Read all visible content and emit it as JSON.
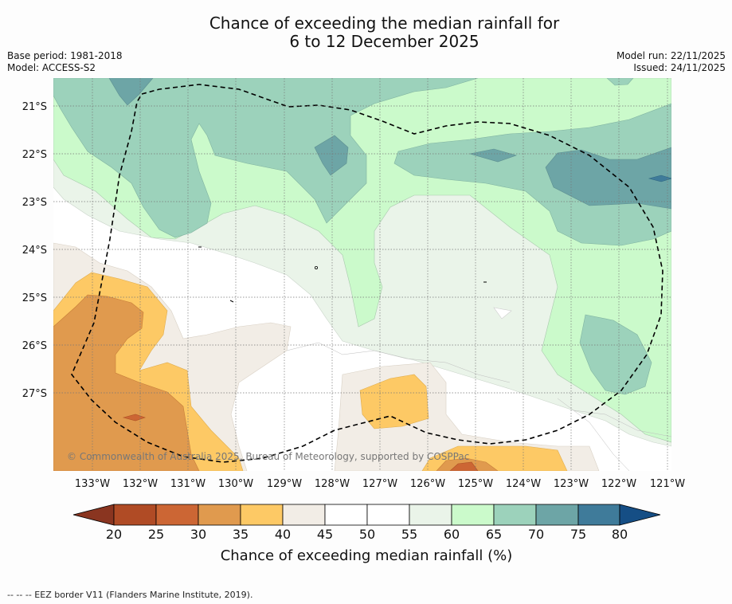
{
  "title": {
    "line1": "Chance of exceeding the median rainfall for",
    "line2": "6 to 12 December 2025"
  },
  "meta": {
    "base_period": "Base period: 1981-2018",
    "model": "Model: ACCESS-S2",
    "model_run": "Model run: 22/11/2025",
    "issued": "Issued: 24/11/2025"
  },
  "map": {
    "lat_labels": [
      "21°S",
      "22°S",
      "23°S",
      "24°S",
      "25°S",
      "26°S",
      "27°S"
    ],
    "lon_labels": [
      "133°W",
      "132°W",
      "131°W",
      "130°W",
      "129°W",
      "128°W",
      "127°W",
      "126°W",
      "125°W",
      "124°W",
      "123°W",
      "122°W",
      "121°W"
    ],
    "copyright": "© Commonwealth of Australia 2025, Bureau of Meteorology, supported by COSPPac",
    "background_color": "#ffffff",
    "border_line": "dashed"
  },
  "colorbar": {
    "ticks": [
      "20",
      "25",
      "30",
      "35",
      "40",
      "45",
      "50",
      "55",
      "60",
      "65",
      "70",
      "75",
      "80"
    ],
    "colors": [
      "#b04b25",
      "#cc6634",
      "#e09a4e",
      "#fdc965",
      "#f2ede6",
      "#ffffff",
      "#ffffff",
      "#eaf4e9",
      "#cbfacb",
      "#9cd2bb",
      "#6da5a6",
      "#3f7b9a"
    ],
    "under_color": "#8a3520",
    "over_color": "#154e85",
    "title": "Chance of exceeding median rainfall (%)"
  },
  "footnote": "--  --  -- EEZ border V11 (Flanders Marine Institute, 2019)."
}
